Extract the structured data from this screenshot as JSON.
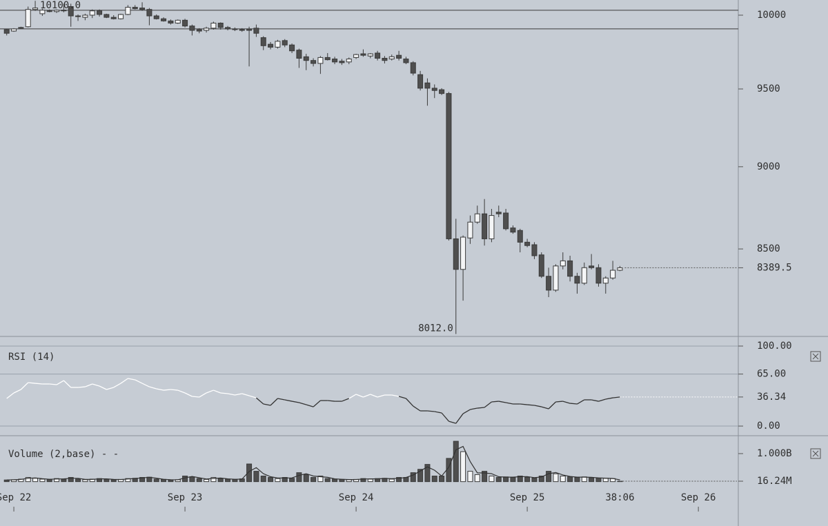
{
  "chart_data": [
    {
      "type": "candlestick",
      "log_scale": true,
      "ylim": [
        8010,
        10106
      ],
      "yticks": [
        10000,
        9500,
        9000,
        8500
      ],
      "up_color": "#f4f5f6",
      "down_color": "#4f4f4f",
      "open": [
        9900,
        9890,
        9910,
        9920,
        10040,
        10010,
        10030,
        10025,
        10035,
        10060,
        9995,
        9985,
        10000,
        10030,
        10005,
        9985,
        9975,
        10005,
        10055,
        10050,
        10040,
        9995,
        9975,
        9960,
        9945,
        9965,
        9925,
        9900,
        9895,
        9910,
        9945,
        9915,
        9905,
        9900,
        9905,
        9910,
        9845,
        9800,
        9780,
        9825,
        9795,
        9760,
        9715,
        9690,
        9670,
        9710,
        9700,
        9685,
        9680,
        9710,
        9735,
        9720,
        9740,
        9705,
        9700,
        9725,
        9700,
        9675,
        9595,
        9540,
        9505,
        9495,
        9470,
        8560,
        8380,
        8565,
        8660,
        8710,
        8560,
        8720,
        8715,
        8625,
        8610,
        8540,
        8525,
        8465,
        8340,
        8260,
        8400,
        8430,
        8340,
        8300,
        8400,
        8390,
        8300,
        8330,
        8375
      ],
      "high": [
        9905,
        9910,
        9920,
        10060,
        10100,
        10045,
        10040,
        10040,
        10080,
        10080,
        10005,
        10010,
        10040,
        10040,
        10010,
        10000,
        10010,
        10070,
        10070,
        10090,
        10050,
        10005,
        9985,
        9970,
        9970,
        9975,
        9935,
        9910,
        9920,
        9955,
        9950,
        9925,
        9915,
        9910,
        9920,
        9935,
        9855,
        9815,
        9830,
        9835,
        9805,
        9770,
        9735,
        9705,
        9720,
        9740,
        9715,
        9700,
        9710,
        9735,
        9765,
        9740,
        9755,
        9720,
        9730,
        9755,
        9715,
        9685,
        9620,
        9570,
        9530,
        9505,
        9480,
        8680,
        8580,
        8700,
        8760,
        8800,
        8740,
        8760,
        8740,
        8640,
        8620,
        8560,
        8540,
        8480,
        8390,
        8410,
        8480,
        8460,
        8360,
        8420,
        8470,
        8410,
        8340,
        8430,
        8400
      ],
      "low": [
        9860,
        9885,
        9905,
        9915,
        10030,
        9995,
        10020,
        10015,
        10020,
        9920,
        9960,
        9965,
        9980,
        9990,
        9980,
        9970,
        9970,
        10000,
        10040,
        10030,
        9930,
        9970,
        9955,
        9935,
        9940,
        9915,
        9860,
        9875,
        9880,
        9900,
        9900,
        9895,
        9890,
        9885,
        9650,
        9850,
        9760,
        9765,
        9770,
        9780,
        9740,
        9640,
        9625,
        9650,
        9600,
        9690,
        9665,
        9660,
        9665,
        9700,
        9715,
        9705,
        9690,
        9670,
        9690,
        9690,
        9665,
        9590,
        9490,
        9390,
        9440,
        9460,
        8550,
        8012,
        8200,
        8530,
        8650,
        8520,
        8540,
        8690,
        8610,
        8590,
        8480,
        8510,
        8440,
        8330,
        8220,
        8250,
        8380,
        8310,
        8240,
        8290,
        8380,
        8280,
        8240,
        8320,
        8370
      ],
      "close": [
        9875,
        9905,
        9915,
        10040,
        10050,
        10035,
        10025,
        10035,
        10030,
        9995,
        9990,
        10000,
        10030,
        10005,
        9985,
        9975,
        10005,
        10055,
        10045,
        10040,
        9995,
        9975,
        9960,
        9945,
        9965,
        9925,
        9895,
        9890,
        9910,
        9945,
        9915,
        9905,
        9900,
        9895,
        9895,
        9875,
        9790,
        9780,
        9820,
        9795,
        9755,
        9705,
        9690,
        9670,
        9710,
        9695,
        9680,
        9675,
        9700,
        9730,
        9725,
        9735,
        9705,
        9690,
        9715,
        9705,
        9675,
        9605,
        9505,
        9505,
        9490,
        9470,
        8560,
        8380,
        8570,
        8660,
        8710,
        8560,
        8700,
        8710,
        8620,
        8600,
        8540,
        8520,
        8460,
        8340,
        8260,
        8400,
        8430,
        8340,
        8300,
        8390,
        8390,
        8300,
        8330,
        8375,
        8389.5
      ],
      "hlines": [
        10034,
        9905
      ],
      "high_label": {
        "value": 10100,
        "label": "10100.0"
      },
      "low_label": {
        "value": 8012,
        "label": "8012.0"
      },
      "last_price": 8389.5
    },
    {
      "type": "line",
      "title": "RSI (14)",
      "color": "#333333",
      "above_color": "#ffffff",
      "grid": true,
      "ylim": [
        -10.3,
        108.6
      ],
      "yticks": [
        {
          "value": 100,
          "label": "100.00"
        },
        {
          "value": 65,
          "label": "65.00"
        },
        {
          "value": 0,
          "label": "0.00"
        }
      ],
      "values": [
        34.5,
        41.4,
        45.7,
        54.3,
        53.4,
        52.6,
        52.6,
        51.7,
        56.9,
        48.3,
        48.3,
        49.1,
        52.6,
        50,
        45.7,
        48.3,
        53.4,
        59.5,
        57.8,
        53.4,
        49.1,
        46.6,
        44.8,
        45.7,
        44.8,
        41.4,
        37.1,
        36.2,
        41.4,
        44.8,
        41.4,
        40.5,
        38.8,
        40.5,
        37.9,
        35.3,
        27.6,
        25.9,
        34.5,
        32.8,
        31,
        29.3,
        26.7,
        24.1,
        31.9,
        31.9,
        31,
        31,
        34.5,
        39.7,
        36.2,
        39.7,
        36.2,
        38.8,
        38.8,
        37.1,
        34.5,
        25,
        19,
        19,
        18.1,
        16.4,
        6,
        3.4,
        15.5,
        20.7,
        22.4,
        23.3,
        30.2,
        31,
        29.3,
        27.6,
        27.6,
        26.7,
        25.9,
        24.1,
        21.6,
        30.2,
        31,
        28.4,
        27.6,
        32.8,
        32.8,
        31,
        33.6,
        35.3,
        36.34
      ],
      "last_value": 36.34
    },
    {
      "type": "volume",
      "title": "Volume (2,base) - -",
      "ylim": [
        -156,
        1516
      ],
      "yticks": [
        {
          "value": 1000,
          "label": "1.000B"
        }
      ],
      "values": [
        60,
        70,
        90,
        150,
        120,
        90,
        80,
        110,
        90,
        150,
        90,
        70,
        90,
        110,
        90,
        70,
        80,
        110,
        120,
        150,
        160,
        90,
        80,
        60,
        70,
        200,
        170,
        110,
        80,
        150,
        110,
        90,
        80,
        100,
        630,
        370,
        200,
        150,
        110,
        150,
        120,
        320,
        250,
        150,
        200,
        110,
        90,
        80,
        70,
        80,
        110,
        90,
        110,
        120,
        90,
        150,
        150,
        320,
        440,
        615,
        200,
        200,
        830,
        1440,
        1070,
        370,
        250,
        370,
        200,
        150,
        170,
        150,
        200,
        160,
        130,
        200,
        370,
        280,
        200,
        170,
        150,
        170,
        140,
        130,
        120,
        110,
        16.24
      ],
      "ma_values": [
        60,
        65,
        80,
        120,
        135,
        105,
        85,
        95,
        100,
        120,
        120,
        80,
        80,
        100,
        100,
        80,
        75,
        95,
        115,
        135,
        155,
        125,
        85,
        70,
        65,
        135,
        185,
        140,
        95,
        115,
        130,
        100,
        85,
        90,
        365,
        500,
        285,
        175,
        130,
        130,
        135,
        220,
        285,
        200,
        175,
        155,
        100,
        85,
        75,
        75,
        95,
        100,
        100,
        115,
        105,
        120,
        150,
        235,
        380,
        527.5,
        407.5,
        200,
        515,
        1135,
        1255,
        720,
        310,
        310,
        285,
        175,
        160,
        160,
        175,
        180,
        145,
        165,
        285,
        325,
        240,
        185,
        160,
        160,
        155,
        135,
        125,
        115,
        63.12
      ],
      "last_value": {
        "value": 16.24,
        "label": "16.24M"
      },
      "xlim": [
        -0.94,
        102.6
      ],
      "xticks": [
        {
          "value": 1,
          "label": "Sep 22"
        },
        {
          "value": 25,
          "label": "Sep 23"
        },
        {
          "value": 49,
          "label": "Sep 24"
        },
        {
          "value": 73,
          "label": "Sep 25"
        },
        {
          "value": 97,
          "label": "Sep 26"
        }
      ],
      "countdown": "38:06"
    }
  ]
}
